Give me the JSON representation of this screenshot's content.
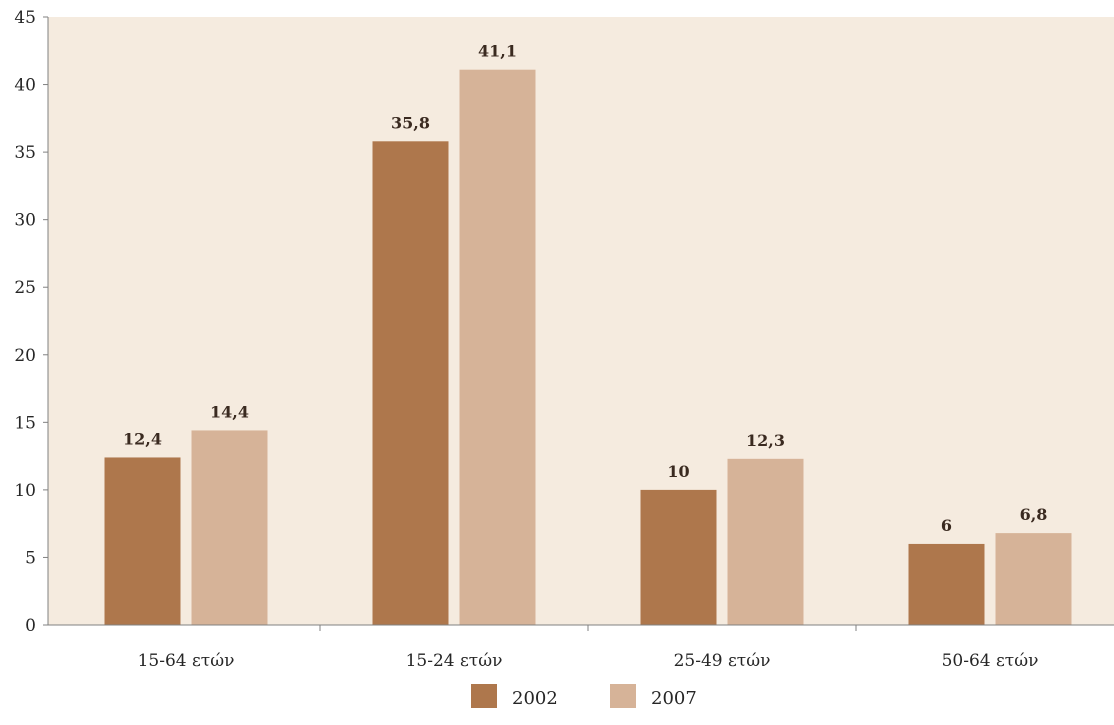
{
  "chart_data": {
    "type": "bar",
    "categories": [
      "15-64 ετών",
      "15-24 ετών",
      "25-49 ετών",
      "50-64 ετών"
    ],
    "series": [
      {
        "name": "2002",
        "values": [
          12.4,
          35.8,
          10,
          6
        ],
        "labels": [
          "12,4",
          "35,8",
          "10",
          "6"
        ],
        "color": "#ae774c"
      },
      {
        "name": "2007",
        "values": [
          14.4,
          41.1,
          12.3,
          6.8
        ],
        "labels": [
          "14,4",
          "41,1",
          "12,3",
          "6,8"
        ],
        "color": "#d6b398"
      }
    ],
    "ylim": [
      0,
      45
    ],
    "yticks": [
      0,
      5,
      10,
      15,
      20,
      25,
      30,
      35,
      40,
      45
    ],
    "title": "",
    "xlabel": "",
    "ylabel": "",
    "grid": false,
    "legend_position": "bottom-center",
    "plot_background": "#f5ebdf"
  }
}
